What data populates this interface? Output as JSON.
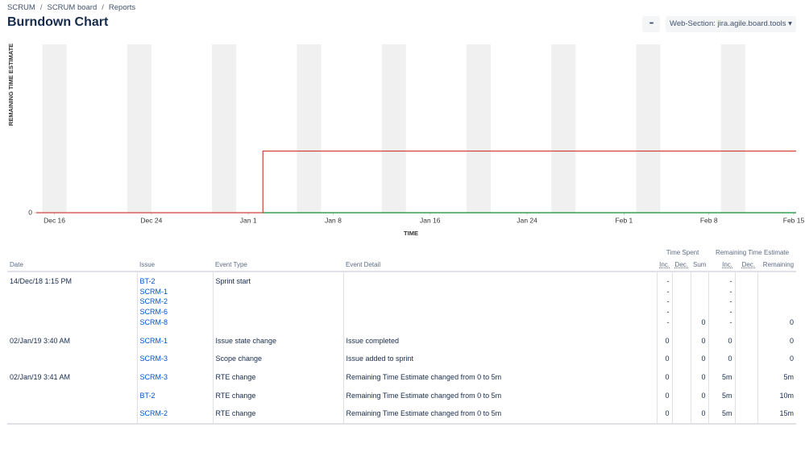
{
  "breadcrumbs": [
    "SCRUM",
    "SCRUM board",
    "Reports"
  ],
  "title": "Burndown Chart",
  "buttons": {
    "more": "•••",
    "web_section": "Web-Section: jira.agile.board.tools"
  },
  "chart_data": {
    "type": "line",
    "ylabel": "REMAINING TIME ESTIMATE",
    "xlabel": "TIME",
    "xlim": [
      -1.5,
      61.2
    ],
    "xticks": [
      {
        "value": 0,
        "label": "Dec 16"
      },
      {
        "value": 8,
        "label": "Dec 24"
      },
      {
        "value": 16,
        "label": "Jan 1"
      },
      {
        "value": 23,
        "label": "Jan 8"
      },
      {
        "value": 31,
        "label": "Jan 16"
      },
      {
        "value": 39,
        "label": "Jan 24"
      },
      {
        "value": 47,
        "label": "Feb 1"
      },
      {
        "value": 54,
        "label": "Feb 8"
      },
      {
        "value": 61,
        "label": "Feb 15"
      }
    ],
    "ylim": [
      0,
      41
    ],
    "yticks": [
      0
    ],
    "series": [
      {
        "color": "#d04437",
        "x": [
          -1.5,
          17.2,
          17.2,
          61.2
        ],
        "values": [
          0,
          0,
          15,
          15
        ]
      },
      {
        "color": "#14892c",
        "x": [
          17.2,
          61.2
        ],
        "values": [
          0,
          0
        ]
      }
    ]
  },
  "table": {
    "group_headers": [
      "Time Spent",
      "Remaining Time Estimate"
    ],
    "headers": [
      "Date",
      "Issue",
      "Event Type",
      "Event Detail",
      "Inc.",
      "Dec.",
      "Sum",
      "Inc.",
      "Dec.",
      "Remaining"
    ],
    "rows": [
      {
        "date": "14/Dec/18 1:15 PM",
        "issues": [
          "BT-2",
          "SCRM-1",
          "SCRM-2",
          "SCRM-6",
          "SCRM-8"
        ],
        "event_type": "Sprint start",
        "ts_inc": [
          "-",
          "-",
          "-",
          "-",
          "-"
        ],
        "ts_sum": "0",
        "rte_inc": [
          "-",
          "-",
          "-",
          "-",
          "-"
        ],
        "remaining": "0"
      },
      {
        "date": "02/Jan/19 3:40 AM",
        "issues": [
          "SCRM-1"
        ],
        "event_type": "Issue state change",
        "event_detail": "Issue completed",
        "ts_inc": "0",
        "ts_sum": "0",
        "rte_inc": "0",
        "remaining": "0"
      },
      {
        "issues": [
          "SCRM-3"
        ],
        "event_type": "Scope change",
        "event_detail": "Issue added to sprint",
        "ts_inc": "0",
        "ts_sum": "0",
        "rte_inc": "0",
        "remaining": "0"
      },
      {
        "date": "02/Jan/19 3:41 AM",
        "issues": [
          "SCRM-3"
        ],
        "event_type": "RTE change",
        "event_detail": "Remaining Time Estimate changed from 0 to 5m",
        "ts_inc": "0",
        "ts_sum": "0",
        "rte_inc": "5m",
        "remaining": "5m"
      },
      {
        "issues": [
          "BT-2"
        ],
        "event_type": "RTE change",
        "event_detail": "Remaining Time Estimate changed from 0 to 5m",
        "ts_inc": "0",
        "ts_sum": "0",
        "rte_inc": "5m",
        "remaining": "10m"
      },
      {
        "issues": [
          "SCRM-2"
        ],
        "event_type": "RTE change",
        "event_detail": "Remaining Time Estimate changed from 0 to 5m",
        "ts_inc": "0",
        "ts_sum": "0",
        "rte_inc": "5m",
        "remaining": "15m"
      }
    ]
  }
}
